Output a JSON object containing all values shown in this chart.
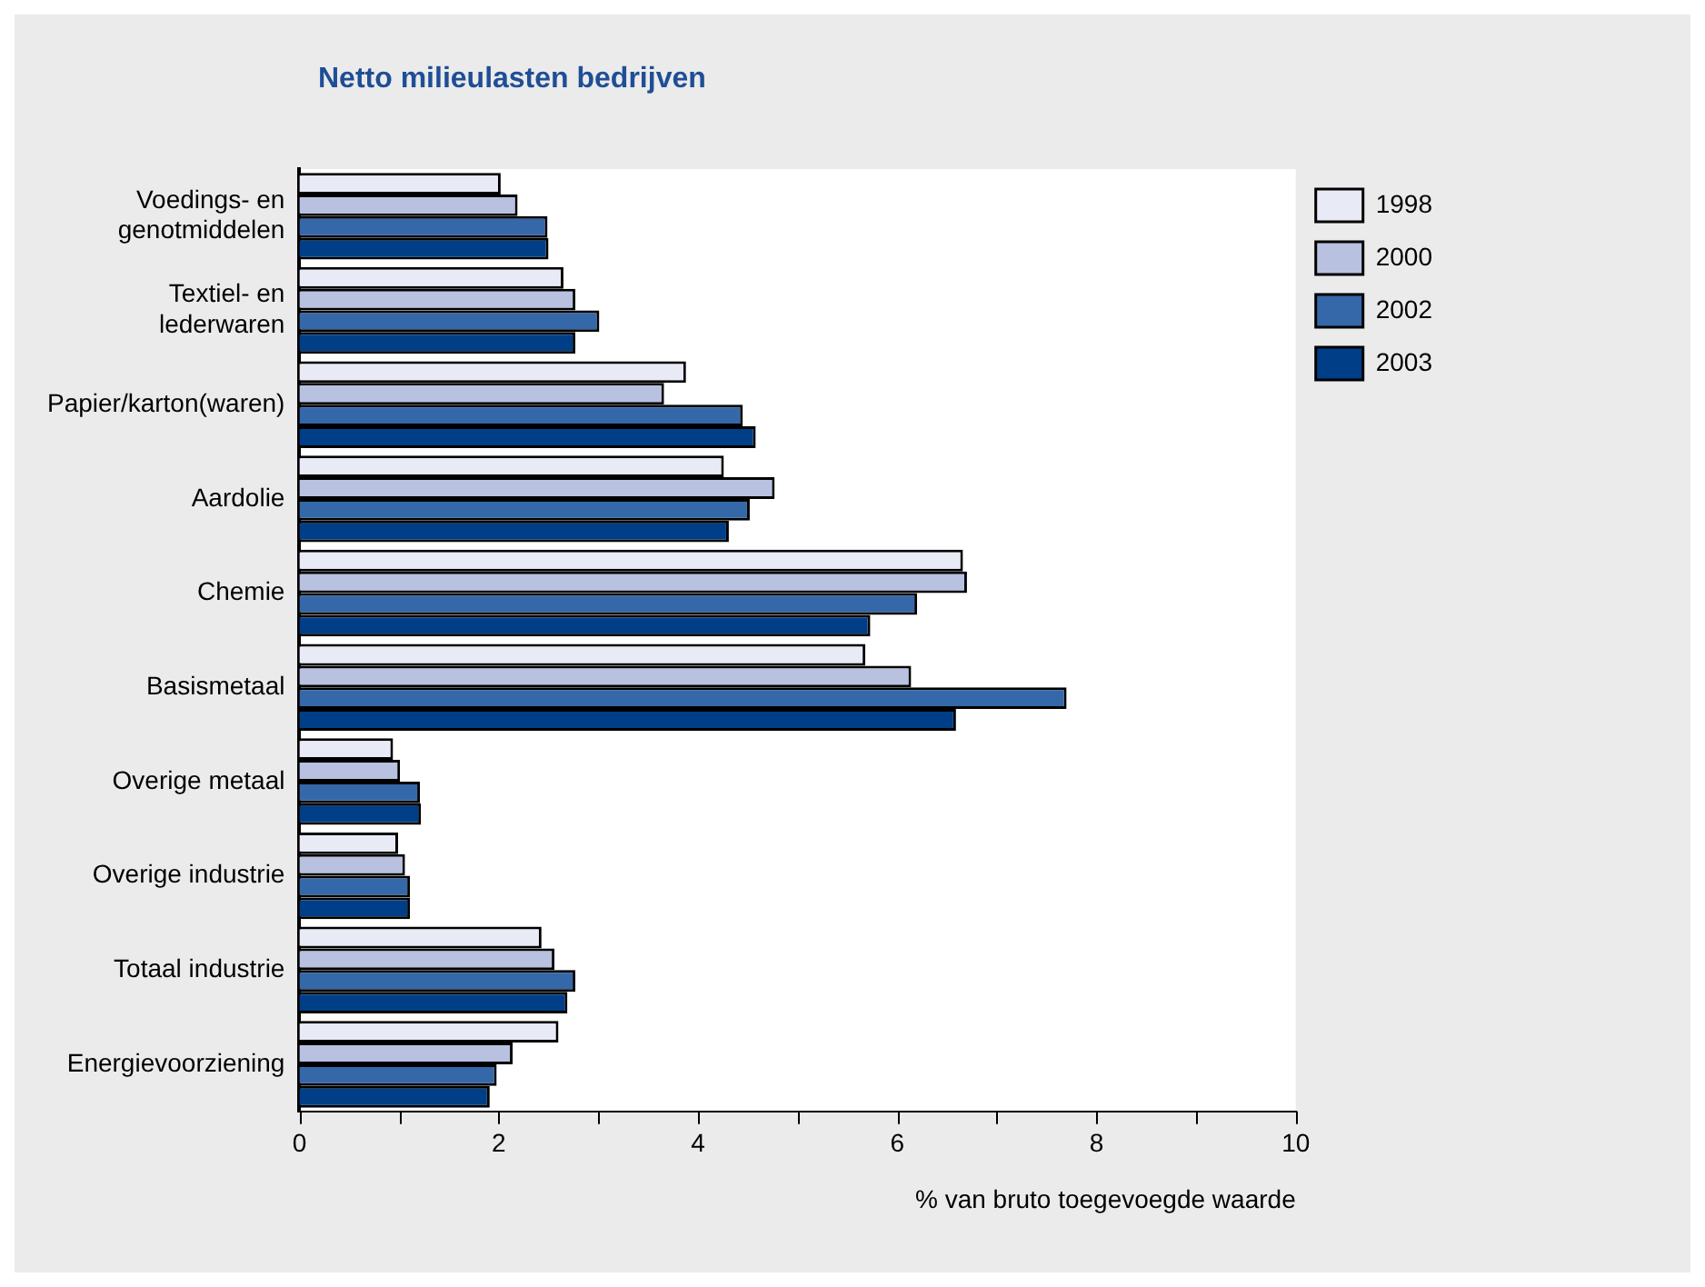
{
  "chart_data": {
    "type": "bar",
    "orientation": "horizontal",
    "title": "Netto milieulasten bedrijven",
    "xlabel": "% van bruto toegevoegde waarde",
    "categories": [
      "Voedings- en\ngenotmiddelen",
      "Textiel- en\nlederwaren",
      "Papier/karton(waren)",
      "Aardolie",
      "Chemie",
      "Basismetaal",
      "Overige metaal",
      "Overige industrie",
      "Totaal industrie",
      "Energievoorziening"
    ],
    "series": [
      {
        "name": "1998",
        "color": "#e8ebf5",
        "values": [
          2.02,
          2.65,
          3.88,
          4.26,
          6.66,
          5.68,
          0.94,
          0.99,
          2.43,
          2.6
        ]
      },
      {
        "name": "2000",
        "color": "#b8c1e0",
        "values": [
          2.19,
          2.77,
          3.66,
          4.77,
          6.7,
          6.14,
          1.01,
          1.06,
          2.56,
          2.14
        ]
      },
      {
        "name": "2002",
        "color": "#3568a8",
        "values": [
          2.49,
          3.01,
          4.45,
          4.52,
          6.2,
          7.7,
          1.21,
          1.11,
          2.77,
          1.98
        ]
      },
      {
        "name": "2003",
        "color": "#003f87",
        "values": [
          2.5,
          2.77,
          4.58,
          4.31,
          5.73,
          6.59,
          1.22,
          1.11,
          2.69,
          1.91
        ]
      }
    ],
    "xlim": [
      0,
      10
    ],
    "xticks": [
      0,
      {
        "value": 1,
        "label": null
      },
      2,
      {
        "value": 3,
        "label": null
      },
      4,
      {
        "value": 5,
        "label": null
      },
      6,
      {
        "value": 7,
        "label": null
      },
      8,
      {
        "value": 9,
        "label": null
      },
      10
    ],
    "grid": false,
    "legend": "top right"
  }
}
